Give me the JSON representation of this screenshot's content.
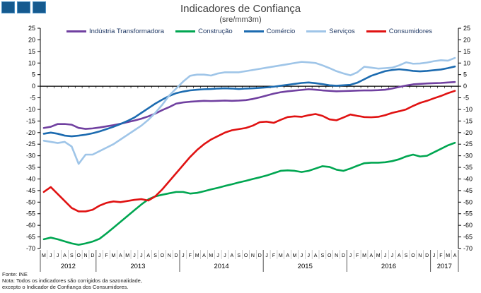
{
  "title": "Indicadores de Confiança",
  "subtitle": "(sre/mm3m)",
  "footer": {
    "fonte": "Fonte: INE",
    "nota_line1": "Nota: Todos os indicadores são corrigidos da sazonalidade,",
    "nota_line2": "excepto o Indicador de Confiança dos Consumidores."
  },
  "colors": {
    "logo_square": "#155a8f",
    "axis": "#000000",
    "separator": "#888888",
    "legend_text": "#1f3864"
  },
  "chart_data": {
    "type": "line",
    "title": "Indicadores de Confiança",
    "subtitle": "(sre/mm3m)",
    "ylim": [
      -70,
      25
    ],
    "y_tick_step": 5,
    "y_ticks": [
      25,
      20,
      15,
      10,
      5,
      0,
      -5,
      -10,
      -15,
      -20,
      -25,
      -30,
      -35,
      -40,
      -45,
      -50,
      -55,
      -60,
      -65,
      -70
    ],
    "grid": false,
    "legend_position": "top",
    "x_month_labels": [
      "M",
      "J",
      "J",
      "A",
      "S",
      "O",
      "N",
      "D",
      "J",
      "F",
      "M",
      "A",
      "M",
      "J",
      "J",
      "A",
      "S",
      "O",
      "N",
      "D",
      "J",
      "F",
      "M",
      "A",
      "M",
      "J",
      "J",
      "A",
      "S",
      "O",
      "N",
      "D",
      "J",
      "F",
      "M",
      "A",
      "M",
      "J",
      "J",
      "A",
      "S",
      "O",
      "N",
      "D",
      "J",
      "F",
      "M",
      "A",
      "M",
      "J",
      "J",
      "A",
      "S",
      "O",
      "N",
      "D",
      "J",
      "F",
      "M",
      "A"
    ],
    "years": [
      {
        "label": "2012",
        "months": 8
      },
      {
        "label": "2013",
        "months": 12
      },
      {
        "label": "2014",
        "months": 12
      },
      {
        "label": "2015",
        "months": 12
      },
      {
        "label": "2016",
        "months": 12
      },
      {
        "label": "2017",
        "months": 4
      }
    ],
    "series": [
      {
        "name": "Indústria Transformadora",
        "color": "#7040a0",
        "values": [
          -18,
          -17.5,
          -16.3,
          -16.3,
          -16.6,
          -18,
          -18.4,
          -18.2,
          -17.8,
          -17.3,
          -16.8,
          -16.2,
          -15.5,
          -14.8,
          -14,
          -13,
          -11.8,
          -10.3,
          -9,
          -7.5,
          -7,
          -6.7,
          -6.5,
          -6.3,
          -6.4,
          -6.3,
          -6.2,
          -6.3,
          -6.2,
          -6,
          -5.5,
          -4.8,
          -4,
          -3.2,
          -2.6,
          -2.2,
          -1.9,
          -1.6,
          -1.3,
          -1.5,
          -1.8,
          -2,
          -2.2,
          -2.1,
          -2,
          -1.9,
          -1.8,
          -1.8,
          -1.7,
          -1.5,
          -1,
          -0.3,
          0.3,
          0.8,
          1,
          1.2,
          1.3,
          1.4,
          1.6,
          1.8
        ]
      },
      {
        "name": "Construção",
        "color": "#00a651",
        "values": [
          -66,
          -65.3,
          -66,
          -66.9,
          -67.8,
          -68.4,
          -67.8,
          -67,
          -65.8,
          -63.5,
          -61,
          -58.5,
          -56,
          -53.5,
          -51,
          -48.8,
          -47.5,
          -46.8,
          -46.2,
          -45.6,
          -45.6,
          -46.3,
          -46,
          -45.3,
          -44.5,
          -43.8,
          -43,
          -42.3,
          -41.5,
          -40.8,
          -40,
          -39.3,
          -38.5,
          -37.5,
          -36.5,
          -36.3,
          -36.5,
          -37,
          -36.5,
          -35.5,
          -34.5,
          -34.8,
          -36,
          -36.5,
          -35.5,
          -34.3,
          -33.2,
          -33,
          -33,
          -32.8,
          -32.3,
          -31.5,
          -30.3,
          -29.5,
          -30.3,
          -30,
          -28.5,
          -27,
          -25.5,
          -24.4
        ]
      },
      {
        "name": "Comércio",
        "color": "#1c6bb0",
        "values": [
          -20.5,
          -20,
          -20.5,
          -21.3,
          -21.6,
          -21.3,
          -20.9,
          -20.3,
          -19.5,
          -18.5,
          -17.5,
          -16.3,
          -15,
          -13.5,
          -11.5,
          -9.5,
          -7.5,
          -5.8,
          -4.2,
          -3,
          -2.3,
          -1.8,
          -1.5,
          -1.3,
          -1.2,
          -1,
          -0.9,
          -1,
          -1.2,
          -1,
          -0.9,
          -0.7,
          -0.5,
          -0.2,
          0.2,
          0.6,
          1,
          1.4,
          1.6,
          1.3,
          0.9,
          0.4,
          0.2,
          0.4,
          0.6,
          1.5,
          3,
          4.5,
          5.5,
          6.5,
          7,
          7.3,
          7,
          6.6,
          6.4,
          6.6,
          6.9,
          7.2,
          7.8,
          8.5
        ]
      },
      {
        "name": "Serviços",
        "color": "#9fc5e8",
        "values": [
          -23.5,
          -24,
          -24.5,
          -24,
          -26,
          -33.5,
          -29.5,
          -29.5,
          -28,
          -26.5,
          -25,
          -23,
          -21,
          -19,
          -17,
          -14.5,
          -11.5,
          -8,
          -4,
          -1,
          2,
          4.5,
          5,
          5,
          4.6,
          5.5,
          6,
          6,
          6,
          6.5,
          7,
          7.5,
          8,
          8.5,
          9,
          9.5,
          10,
          10.5,
          10.3,
          10,
          9,
          7.8,
          6.5,
          5.5,
          4.7,
          6,
          8.4,
          8,
          7.6,
          7.8,
          8,
          9,
          10.3,
          9.7,
          9.8,
          10.2,
          10.8,
          11.2,
          11,
          12.2
        ]
      },
      {
        "name": "Consumidores",
        "color": "#e01212",
        "values": [
          -45.6,
          -43.5,
          -46.5,
          -49.5,
          -52.5,
          -54,
          -54,
          -53.3,
          -51.5,
          -50.3,
          -49.7,
          -50,
          -49.5,
          -49,
          -48.7,
          -49.3,
          -47.5,
          -44.5,
          -41,
          -37.5,
          -34,
          -30.5,
          -27.5,
          -25,
          -23,
          -21.5,
          -20,
          -19,
          -18.5,
          -18,
          -17,
          -15.5,
          -15.3,
          -15.8,
          -14.5,
          -13.3,
          -13,
          -13.2,
          -12.5,
          -12,
          -12.8,
          -14.3,
          -14.7,
          -13.5,
          -12.2,
          -12.8,
          -13.3,
          -13.4,
          -13.2,
          -12.5,
          -11.5,
          -10.8,
          -10,
          -8.5,
          -7.2,
          -6.3,
          -5.2,
          -4.2,
          -3,
          -2
        ]
      }
    ]
  }
}
